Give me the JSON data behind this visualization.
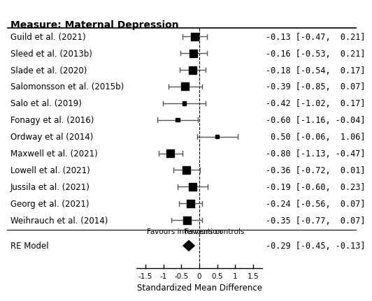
{
  "title": "Measure: Maternal Depression",
  "xlabel": "Standardized Mean Difference",
  "studies": [
    {
      "label": "Guild et al. (2021)",
      "mean": -0.13,
      "ci_lo": -0.47,
      "ci_hi": 0.21,
      "ci_text": "-0.13 [-0.47,  0.21]",
      "large": true
    },
    {
      "label": "Sleed et al. (2013b)",
      "mean": -0.16,
      "ci_lo": -0.53,
      "ci_hi": 0.21,
      "ci_text": "-0.16 [-0.53,  0.21]",
      "large": true
    },
    {
      "label": "Slade et al. (2020)",
      "mean": -0.18,
      "ci_lo": -0.54,
      "ci_hi": 0.17,
      "ci_text": "-0.18 [-0.54,  0.17]",
      "large": true
    },
    {
      "label": "Salomonsson et al. (2015b)",
      "mean": -0.39,
      "ci_lo": -0.85,
      "ci_hi": 0.07,
      "ci_text": "-0.39 [-0.85,  0.07]",
      "large": true
    },
    {
      "label": "Salo et al. (2019)",
      "mean": -0.42,
      "ci_lo": -1.02,
      "ci_hi": 0.17,
      "ci_text": "-0.42 [-1.02,  0.17]",
      "large": false
    },
    {
      "label": "Fonagy et al. (2016)",
      "mean": -0.6,
      "ci_lo": -1.16,
      "ci_hi": -0.04,
      "ci_text": "-0.60 [-1.16, -0.04]",
      "large": false
    },
    {
      "label": "Ordway et al (2014)",
      "mean": 0.5,
      "ci_lo": -0.06,
      "ci_hi": 1.06,
      "ci_text": " 0.50 [-0.06,  1.06]",
      "large": false
    },
    {
      "label": "Maxwell et al. (2021)",
      "mean": -0.8,
      "ci_lo": -1.13,
      "ci_hi": -0.47,
      "ci_text": "-0.80 [-1.13, -0.47]",
      "large": true
    },
    {
      "label": "Lowell et al. (2021)",
      "mean": -0.36,
      "ci_lo": -0.72,
      "ci_hi": 0.01,
      "ci_text": "-0.36 [-0.72,  0.01]",
      "large": true
    },
    {
      "label": "Jussila et al. (2021)",
      "mean": -0.19,
      "ci_lo": -0.6,
      "ci_hi": 0.23,
      "ci_text": "-0.19 [-0.60,  0.23]",
      "large": true
    },
    {
      "label": "Georg et al. (2021)",
      "mean": -0.24,
      "ci_lo": -0.56,
      "ci_hi": 0.07,
      "ci_text": "-0.24 [-0.56,  0.07]",
      "large": true
    },
    {
      "label": "Weihrauch et al. (2014)",
      "mean": -0.35,
      "ci_lo": -0.77,
      "ci_hi": 0.07,
      "ci_text": "-0.35 [-0.77,  0.07]",
      "large": true
    }
  ],
  "re_model": {
    "mean": -0.29,
    "ci_lo": -0.45,
    "ci_hi": -0.13,
    "ci_text": "-0.29 [-0.45, -0.13]"
  },
  "xlim": [
    -1.75,
    1.75
  ],
  "xticks": [
    -1.5,
    -1.0,
    -0.5,
    0.0,
    0.5,
    1.0,
    1.5
  ],
  "xtick_labels": [
    "-1.5",
    "-1",
    "-0.5",
    "0",
    "0.5",
    "1",
    "1.5"
  ],
  "favours_left": "Favours intervention",
  "favours_right": "Favours controls",
  "bg_color": "#ffffff",
  "box_color": "#000000",
  "line_color": "#555555",
  "diamond_color": "#000000",
  "title_fontsize": 10,
  "label_fontsize": 8.5,
  "ci_text_fontsize": 8.5,
  "axis_fontsize": 8.5
}
